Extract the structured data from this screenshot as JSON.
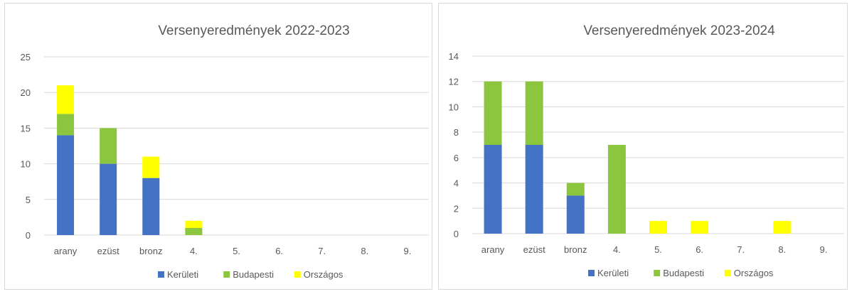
{
  "charts": [
    {
      "colors": {
        "Kerületi": "#4472c4",
        "Budapesti": "#8cc63e",
        "Országos": "#ffff00"
      },
      "legend_position": "bottom"
    },
    {
      "colors": {
        "Kerületi": "#4472c4",
        "Budapesti": "#8cc63e",
        "Országos": "#ffff00"
      },
      "legend_position": "bottom"
    }
  ],
  "chart_data": [
    {
      "type": "bar",
      "stacked": true,
      "title": "Versenyeredmények  2022-2023",
      "categories": [
        "arany",
        "ezüst",
        "bronz",
        "4.",
        "5.",
        "6.",
        "7.",
        "8.",
        "9."
      ],
      "series": [
        {
          "name": "Kerületi",
          "values": [
            14,
            10,
            8,
            0,
            0,
            0,
            0,
            0,
            0
          ]
        },
        {
          "name": "Budapesti",
          "values": [
            3,
            5,
            0,
            1,
            0,
            0,
            0,
            0,
            0
          ]
        },
        {
          "name": "Országos",
          "values": [
            4,
            0,
            3,
            1,
            0,
            0,
            0,
            0,
            0
          ]
        }
      ],
      "yticks": [
        0,
        5,
        10,
        15,
        20,
        25
      ],
      "ylim": [
        0,
        25
      ],
      "grid": true
    },
    {
      "type": "bar",
      "stacked": true,
      "title": "Versenyeredmények  2023-2024",
      "categories": [
        "arany",
        "ezüst",
        "bronz",
        "4.",
        "5.",
        "6.",
        "7.",
        "8.",
        "9."
      ],
      "series": [
        {
          "name": "Kerületi",
          "values": [
            7,
            7,
            3,
            0,
            0,
            0,
            0,
            0,
            0
          ]
        },
        {
          "name": "Budapesti",
          "values": [
            5,
            5,
            1,
            7,
            0,
            0,
            0,
            0,
            0
          ]
        },
        {
          "name": "Országos",
          "values": [
            0,
            0,
            0,
            0,
            1,
            1,
            0,
            1,
            0
          ]
        }
      ],
      "yticks": [
        0,
        2,
        4,
        6,
        8,
        10,
        12,
        14
      ],
      "ylim": [
        0,
        14
      ],
      "grid": true
    }
  ]
}
